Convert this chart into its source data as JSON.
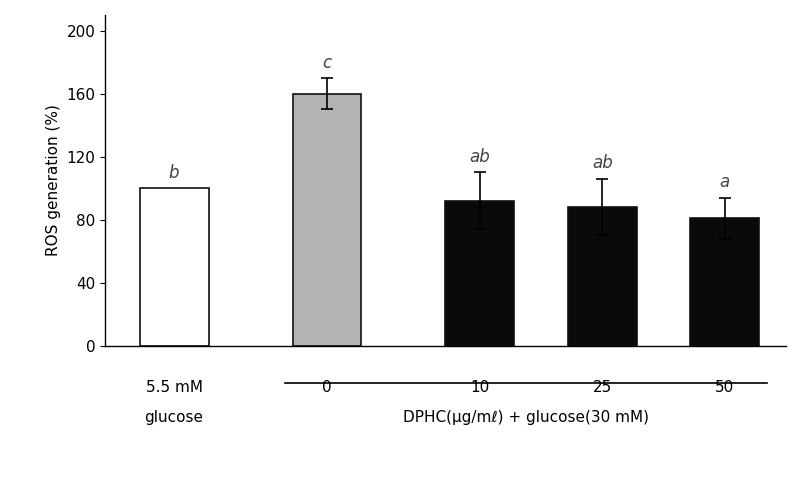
{
  "values": [
    100,
    160,
    92,
    88,
    81
  ],
  "errors": [
    0,
    10,
    18,
    18,
    13
  ],
  "bar_colors": [
    "#ffffff",
    "#b3b3b3",
    "#0a0a0a",
    "#0a0a0a",
    "#0a0a0a"
  ],
  "bar_edgecolors": [
    "#111111",
    "#111111",
    "#111111",
    "#111111",
    "#111111"
  ],
  "sig_labels": [
    "b",
    "c",
    "ab",
    "ab",
    "a"
  ],
  "ylabel": "ROS generation (%)",
  "ylim": [
    0,
    210
  ],
  "yticks": [
    0,
    40,
    80,
    120,
    160,
    200
  ],
  "background_color": "#ffffff",
  "label_fontsize": 11,
  "tick_fontsize": 11,
  "annotation_fontsize": 12,
  "bar_width": 0.45,
  "x_positions": [
    0,
    1.0,
    2.0,
    2.8,
    3.6
  ],
  "dphc_label": "DPHC(μg/mℓ) + glucose(30 mM)",
  "top_ticks": [
    "0",
    "10",
    "25",
    "50"
  ],
  "left_label_line1": "5.5 mM",
  "left_label_line2": "glucose"
}
